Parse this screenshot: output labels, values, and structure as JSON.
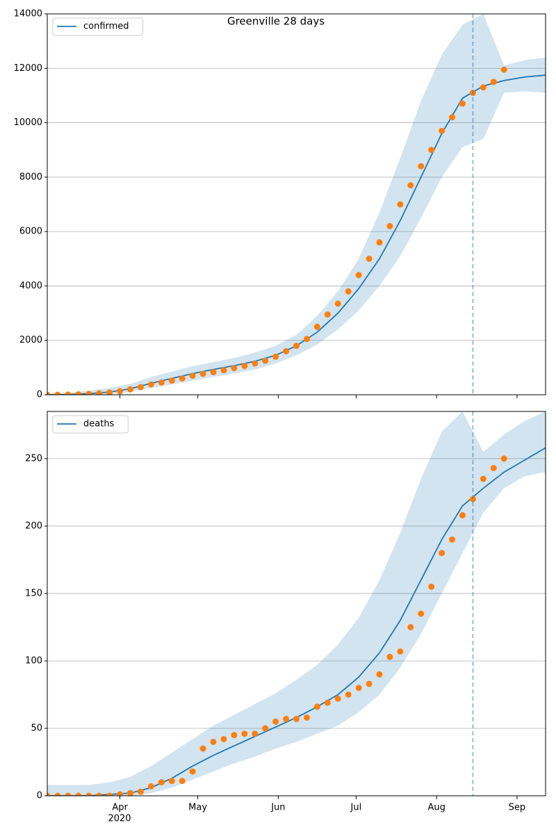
{
  "chart_data": [
    {
      "type": "line",
      "title": "Greenville 28 days",
      "xlim": [
        64,
        256
      ],
      "ylim": [
        0,
        14000
      ],
      "yticks": [
        0,
        2000,
        4000,
        6000,
        8000,
        10000,
        12000,
        14000
      ],
      "grid": true,
      "legend": "upper left",
      "vline": 228,
      "series": [
        {
          "name": "confirmed",
          "color": "#1f77b4",
          "x": [
            64,
            72,
            80,
            88,
            96,
            104,
            112,
            120,
            128,
            136,
            144,
            152,
            160,
            168,
            176,
            184,
            192,
            200,
            208,
            216,
            224,
            232,
            240,
            248,
            256
          ],
          "values": [
            0,
            10,
            40,
            100,
            220,
            420,
            600,
            780,
            930,
            1070,
            1230,
            1450,
            1800,
            2300,
            3000,
            3900,
            5000,
            6400,
            8000,
            9600,
            10900,
            11350,
            11550,
            11680,
            11750
          ],
          "band_upper": [
            50,
            80,
            150,
            250,
            400,
            650,
            850,
            1050,
            1200,
            1350,
            1550,
            1800,
            2200,
            2900,
            3800,
            5000,
            6700,
            8700,
            10800,
            12500,
            13600,
            14000,
            12100,
            12300,
            12400
          ],
          "band_lower": [
            0,
            0,
            0,
            20,
            100,
            250,
            380,
            520,
            650,
            780,
            930,
            1150,
            1450,
            1850,
            2400,
            3100,
            4000,
            5100,
            6500,
            8000,
            9100,
            9400,
            11100,
            11150,
            11100
          ]
        },
        {
          "type": "scatter",
          "color": "#ff7f0e",
          "x": [
            64,
            68,
            72,
            76,
            80,
            84,
            88,
            92,
            96,
            100,
            104,
            108,
            112,
            116,
            120,
            124,
            128,
            132,
            136,
            140,
            144,
            148,
            152,
            156,
            160,
            164,
            168,
            172,
            176,
            180,
            184,
            188,
            192,
            196,
            200,
            204,
            208,
            212,
            216,
            220,
            224,
            228,
            232,
            236,
            240
          ],
          "values": [
            0,
            0,
            5,
            15,
            30,
            50,
            80,
            130,
            200,
            280,
            380,
            450,
            520,
            600,
            700,
            770,
            830,
            900,
            980,
            1060,
            1150,
            1250,
            1400,
            1600,
            1800,
            2050,
            2500,
            2950,
            3350,
            3800,
            4400,
            5000,
            5600,
            6200,
            7000,
            7700,
            8400,
            9000,
            9700,
            10200,
            10700,
            11100,
            11300,
            11500,
            11950
          ]
        }
      ]
    },
    {
      "type": "line",
      "xlim": [
        64,
        256
      ],
      "ylim": [
        0,
        285
      ],
      "yticks": [
        0,
        50,
        100,
        150,
        200,
        250
      ],
      "grid": true,
      "legend": "upper left",
      "vline": 228,
      "xticks": [
        {
          "value": 92,
          "label": "Apr"
        },
        {
          "value": 122,
          "label": "May"
        },
        {
          "value": 153,
          "label": "Jun"
        },
        {
          "value": 183,
          "label": "Jul"
        },
        {
          "value": 214,
          "label": "Aug"
        },
        {
          "value": 245,
          "label": "Sep"
        }
      ],
      "year_label": "2020",
      "series": [
        {
          "name": "deaths",
          "color": "#1f77b4",
          "x": [
            64,
            72,
            80,
            88,
            96,
            104,
            112,
            120,
            128,
            136,
            144,
            152,
            160,
            168,
            176,
            184,
            192,
            200,
            208,
            216,
            224,
            232,
            240,
            248,
            256
          ],
          "values": [
            0,
            0,
            0,
            1,
            2,
            6,
            13,
            22,
            30,
            37,
            44,
            51,
            58,
            66,
            75,
            88,
            106,
            130,
            160,
            190,
            215,
            228,
            240,
            249,
            258
          ],
          "band_upper": [
            8,
            8,
            8,
            10,
            14,
            22,
            32,
            42,
            52,
            60,
            68,
            76,
            86,
            97,
            112,
            132,
            160,
            195,
            235,
            270,
            285,
            255,
            268,
            278,
            285
          ],
          "band_lower": [
            0,
            0,
            0,
            0,
            0,
            2,
            6,
            12,
            18,
            24,
            29,
            35,
            40,
            46,
            52,
            62,
            75,
            95,
            120,
            150,
            180,
            210,
            228,
            237,
            240
          ]
        },
        {
          "type": "scatter",
          "color": "#ff7f0e",
          "x": [
            64,
            68,
            72,
            76,
            80,
            84,
            88,
            92,
            96,
            100,
            104,
            108,
            112,
            116,
            120,
            124,
            128,
            132,
            136,
            140,
            144,
            148,
            152,
            156,
            160,
            164,
            168,
            172,
            176,
            180,
            184,
            188,
            192,
            196,
            200,
            204,
            208,
            212,
            216,
            220,
            224,
            228,
            232,
            236,
            240
          ],
          "values": [
            0,
            0,
            0,
            0,
            0,
            0,
            0,
            1,
            2,
            3,
            7,
            10,
            11,
            11,
            18,
            35,
            40,
            42,
            45,
            46,
            46,
            50,
            55,
            57,
            57,
            58,
            66,
            69,
            72,
            75,
            80,
            83,
            90,
            103,
            107,
            125,
            135,
            155,
            180,
            190,
            208,
            220,
            235,
            243,
            250
          ]
        }
      ]
    }
  ]
}
